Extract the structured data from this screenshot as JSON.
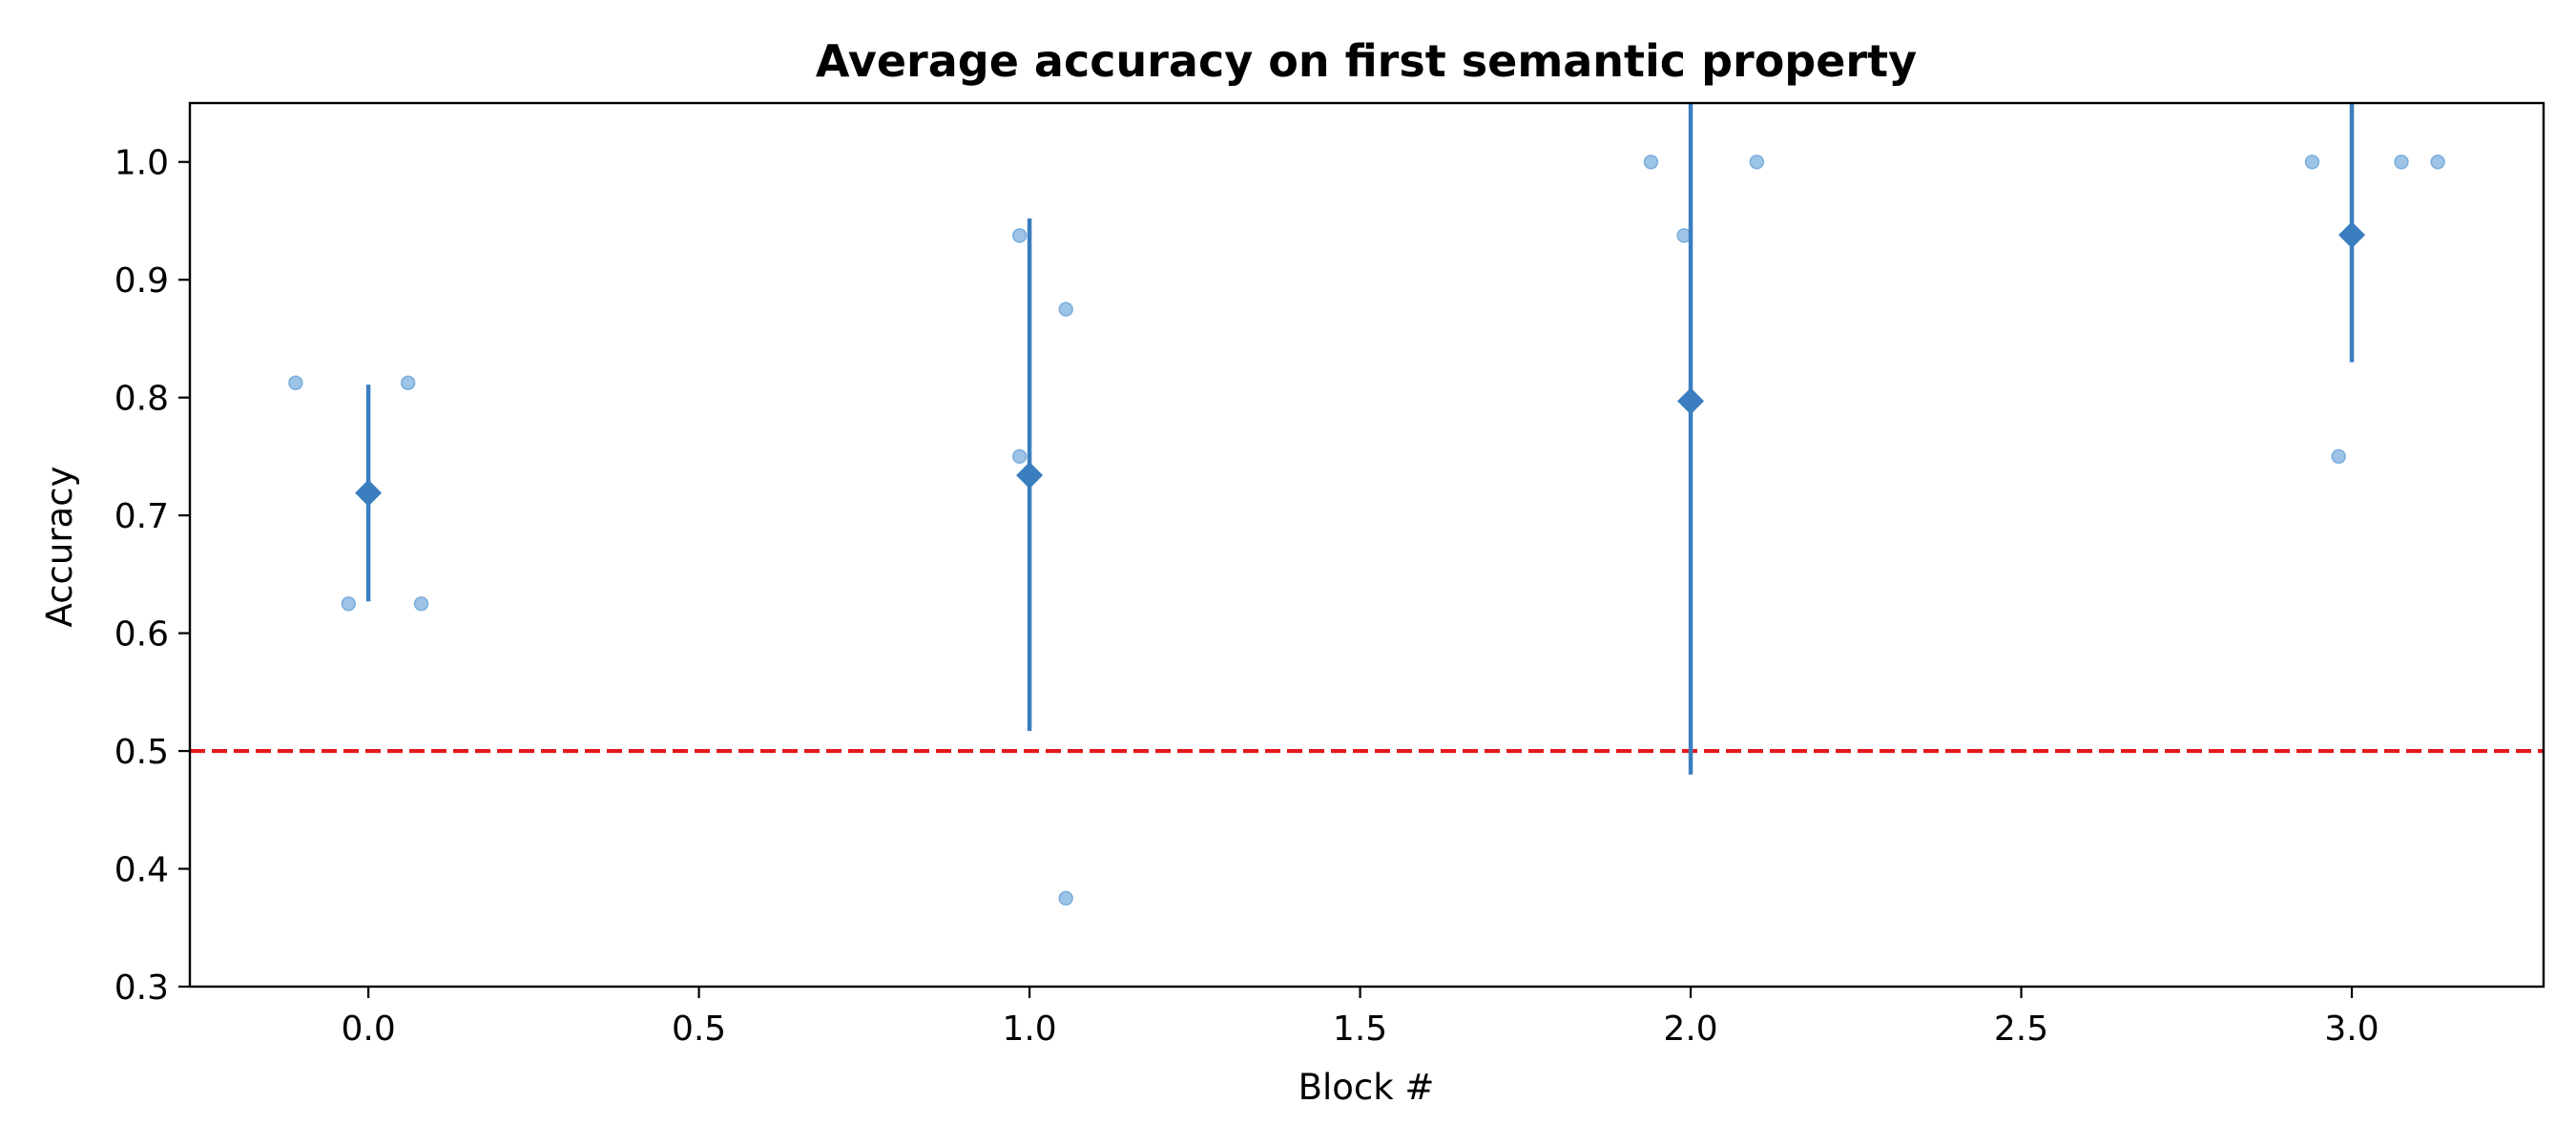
{
  "chart_data": {
    "type": "scatter",
    "title": "Average accuracy on first semantic property",
    "xlabel": "Block #",
    "ylabel": "Accuracy",
    "xlim": [
      -0.27,
      3.29
    ],
    "ylim": [
      0.3,
      1.05
    ],
    "xticks": [
      0.0,
      0.5,
      1.0,
      1.5,
      2.0,
      2.5,
      3.0
    ],
    "xtick_labels": [
      "0.0",
      "0.5",
      "1.0",
      "1.5",
      "2.0",
      "2.5",
      "3.0"
    ],
    "yticks": [
      0.3,
      0.4,
      0.5,
      0.6,
      0.7,
      0.8,
      0.9,
      1.0
    ],
    "ytick_labels": [
      "0.3",
      "0.4",
      "0.5",
      "0.6",
      "0.7",
      "0.8",
      "0.9",
      "1.0"
    ],
    "grid": false,
    "reference_line": {
      "y": 0.5,
      "style": "dashed",
      "color": "#e31a1c"
    },
    "individual_points": [
      {
        "x": -0.11,
        "y": 0.8125
      },
      {
        "x": -0.03,
        "y": 0.625
      },
      {
        "x": 0.06,
        "y": 0.8125
      },
      {
        "x": 0.08,
        "y": 0.625
      },
      {
        "x": 0.985,
        "y": 0.9375
      },
      {
        "x": 0.985,
        "y": 0.75
      },
      {
        "x": 1.055,
        "y": 0.875
      },
      {
        "x": 1.055,
        "y": 0.375
      },
      {
        "x": 1.94,
        "y": 1.0
      },
      {
        "x": 1.99,
        "y": 0.9375
      },
      {
        "x": 2.1,
        "y": 1.0
      },
      {
        "x": 2.94,
        "y": 1.0
      },
      {
        "x": 2.98,
        "y": 0.75
      },
      {
        "x": 3.075,
        "y": 1.0
      },
      {
        "x": 3.13,
        "y": 1.0
      }
    ],
    "means": [
      {
        "x": 0,
        "mean": 0.719,
        "err_low": 0.627,
        "err_high": 0.811
      },
      {
        "x": 1,
        "mean": 0.734,
        "err_low": 0.517,
        "err_high": 0.952
      },
      {
        "x": 2,
        "mean": 0.797,
        "err_low": 0.48,
        "err_high": 1.05
      },
      {
        "x": 3,
        "mean": 0.938,
        "err_low": 0.83,
        "err_high": 1.05
      }
    ],
    "colors": {
      "mean": "#3a7ebf",
      "points": "#5b9bd5",
      "reference": "#e31a1c",
      "axes": "#000000"
    }
  }
}
